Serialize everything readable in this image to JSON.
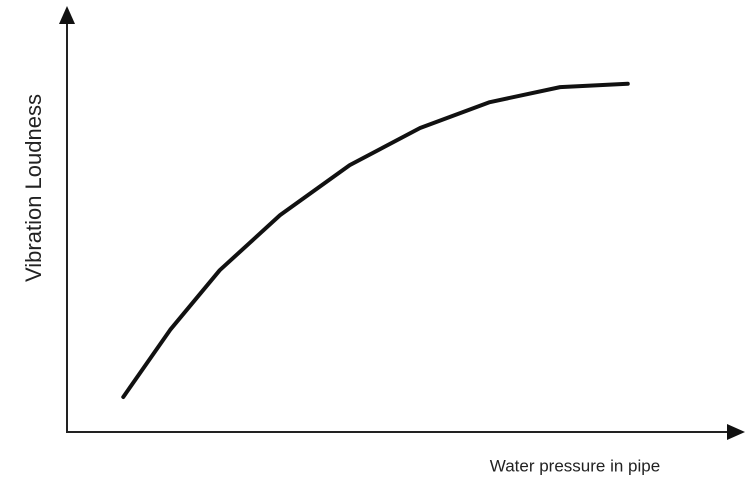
{
  "chart_data": {
    "type": "line",
    "x_label": "Water pressure in pipe",
    "y_label": "Vibration Loudness",
    "x": [
      8.4,
      15.4,
      22.8,
      31.8,
      42.2,
      52.7,
      63.1,
      73.6,
      83.7
    ],
    "series": [
      {
        "color": "#111111",
        "values": [
          8.4,
          24.5,
          38.8,
          52.0,
          64.0,
          72.9,
          79.1,
          82.7,
          83.5
        ]
      }
    ],
    "xlim": [
      0,
      100
    ],
    "ylim": [
      0,
      100
    ]
  }
}
